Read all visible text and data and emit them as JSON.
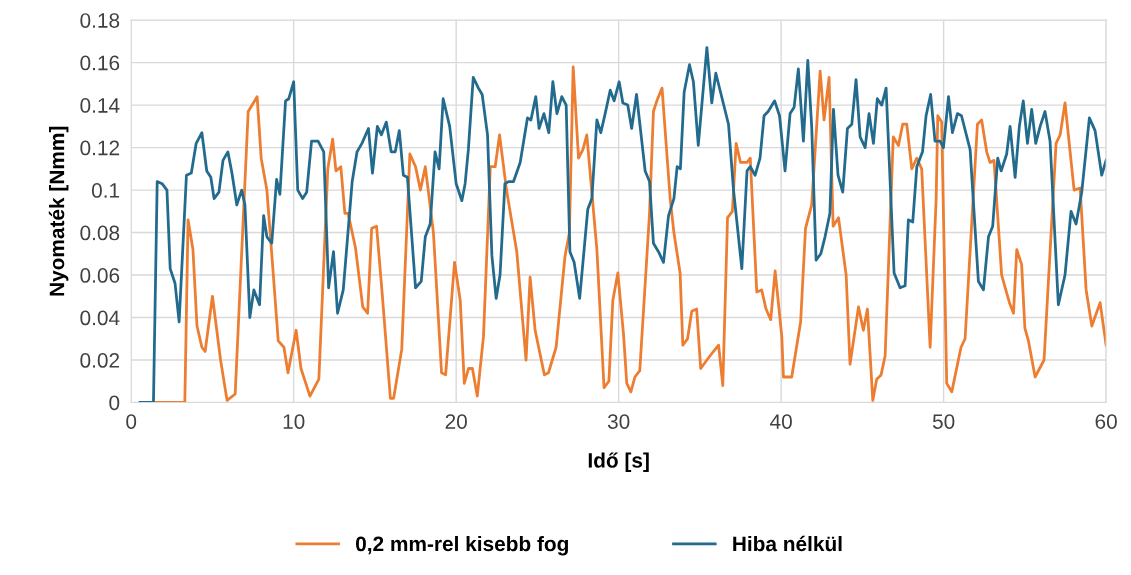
{
  "chart_data": {
    "type": "line",
    "xlabel": "Idő [s]",
    "ylabel": "Nyomaték [Nmm]",
    "xlim": [
      0,
      60
    ],
    "xticks": [
      0,
      10,
      20,
      30,
      40,
      50,
      60
    ],
    "ylim": [
      0,
      0.18
    ],
    "yticks": [
      0,
      0.02,
      0.04,
      0.06,
      0.08,
      0.1,
      0.12,
      0.14,
      0.16,
      0.18
    ],
    "grid": true,
    "legend": "bottom",
    "marker": "none",
    "line_style": "solid",
    "series": [
      {
        "name": "0,2 mm-rel kisebb fog",
        "color": "#ed7d31",
        "x": [
          1.37,
          3.3,
          3.5,
          3.8,
          4.05,
          4.35,
          4.55,
          5.0,
          5.5,
          5.9,
          6.4,
          7.2,
          7.75,
          8.0,
          8.35,
          8.65,
          9.05,
          9.4,
          9.65,
          10.15,
          10.45,
          11.0,
          11.55,
          12.1,
          12.4,
          12.6,
          12.9,
          13.15,
          13.35,
          13.8,
          14.25,
          14.55,
          14.8,
          15.1,
          15.45,
          15.95,
          16.15,
          16.65,
          17.15,
          17.5,
          17.8,
          18.1,
          18.6,
          19.1,
          19.35,
          19.9,
          20.25,
          20.5,
          20.76,
          21.0,
          21.3,
          21.68,
          22.1,
          22.4,
          22.67,
          23.1,
          23.73,
          24.3,
          24.55,
          24.86,
          25.43,
          25.68,
          26.15,
          26.7,
          26.97,
          27.2,
          27.53,
          27.8,
          28.04,
          28.66,
          29.1,
          29.4,
          29.64,
          29.95,
          30.3,
          30.5,
          30.75,
          31.0,
          31.3,
          31.9,
          32.14,
          32.35,
          32.67,
          33.17,
          33.4,
          33.78,
          33.95,
          34.24,
          34.5,
          34.8,
          35.05,
          35.43,
          35.83,
          36.15,
          36.41,
          36.7,
          37.0,
          37.23,
          37.5,
          37.9,
          38.1,
          38.5,
          38.8,
          39.07,
          39.36,
          39.63,
          40.04,
          40.14,
          40.65,
          41.2,
          41.5,
          41.88,
          42.4,
          42.64,
          42.95,
          43.2,
          43.53,
          44.0,
          44.24,
          44.76,
          45.06,
          45.31,
          45.64,
          45.88,
          46.15,
          46.4,
          46.9,
          47.22,
          47.48,
          47.73,
          48.04,
          48.35,
          48.65,
          49.17,
          49.54,
          49.64,
          49.88,
          50.19,
          50.5,
          51.07,
          51.32,
          52.08,
          52.34,
          52.65,
          52.86,
          53.1,
          53.57,
          54.05,
          54.3,
          54.5,
          54.8,
          55.0,
          55.22,
          55.63,
          56.18,
          56.92,
          57.17,
          57.47,
          58.03,
          58.4,
          58.77,
          59.12,
          59.63,
          60
        ],
        "values": [
          0,
          0,
          0.086,
          0.072,
          0.036,
          0.026,
          0.024,
          0.05,
          0.02,
          0.001,
          0.004,
          0.137,
          0.144,
          0.115,
          0.1,
          0.07,
          0.029,
          0.026,
          0.014,
          0.034,
          0.016,
          0.003,
          0.011,
          0.11,
          0.124,
          0.109,
          0.111,
          0.089,
          0.089,
          0.073,
          0.045,
          0.042,
          0.082,
          0.083,
          0.051,
          0.002,
          0.002,
          0.025,
          0.117,
          0.111,
          0.1,
          0.111,
          0.08,
          0.014,
          0.013,
          0.066,
          0.048,
          0.009,
          0.016,
          0.016,
          0.003,
          0.031,
          0.111,
          0.111,
          0.126,
          0.1,
          0.071,
          0.02,
          0.059,
          0.034,
          0.013,
          0.014,
          0.026,
          0.069,
          0.08,
          0.158,
          0.115,
          0.119,
          0.126,
          0.072,
          0.007,
          0.01,
          0.048,
          0.061,
          0.032,
          0.009,
          0.005,
          0.012,
          0.015,
          0.089,
          0.137,
          0.142,
          0.148,
          0.096,
          0.08,
          0.061,
          0.027,
          0.03,
          0.043,
          0.044,
          0.016,
          0.02,
          0.024,
          0.027,
          0.008,
          0.087,
          0.09,
          0.122,
          0.113,
          0.113,
          0.115,
          0.052,
          0.053,
          0.044,
          0.039,
          0.062,
          0.031,
          0.012,
          0.012,
          0.038,
          0.082,
          0.093,
          0.156,
          0.133,
          0.153,
          0.083,
          0.087,
          0.06,
          0.018,
          0.045,
          0.034,
          0.044,
          0.001,
          0.011,
          0.013,
          0.022,
          0.125,
          0.121,
          0.131,
          0.131,
          0.11,
          0.115,
          0.11,
          0.026,
          0.096,
          0.135,
          0.132,
          0.009,
          0.005,
          0.026,
          0.03,
          0.131,
          0.133,
          0.118,
          0.113,
          0.114,
          0.06,
          0.047,
          0.042,
          0.072,
          0.065,
          0.035,
          0.029,
          0.012,
          0.02,
          0.122,
          0.126,
          0.141,
          0.1,
          0.101,
          0.053,
          0.036,
          0.047,
          0.027
        ]
      },
      {
        "name": "Hiba nélkül",
        "color": "#236b8e",
        "x": [
          0.55,
          1.37,
          1.6,
          1.9,
          2.2,
          2.4,
          2.7,
          2.95,
          3.4,
          3.7,
          4.0,
          4.35,
          4.65,
          4.9,
          5.1,
          5.4,
          5.65,
          5.95,
          6.2,
          6.5,
          6.8,
          7.0,
          7.3,
          7.55,
          7.9,
          8.15,
          8.35,
          8.65,
          8.95,
          9.15,
          9.5,
          9.7,
          10.0,
          10.25,
          10.55,
          10.8,
          11.1,
          11.5,
          11.85,
          12.15,
          12.45,
          12.7,
          13.05,
          13.6,
          13.9,
          14.2,
          14.6,
          14.85,
          15.15,
          15.4,
          15.7,
          16.0,
          16.25,
          16.5,
          16.75,
          17.0,
          17.5,
          17.85,
          18.1,
          18.4,
          18.7,
          18.95,
          19.2,
          19.6,
          20.0,
          20.35,
          20.55,
          20.75,
          21.05,
          21.37,
          21.6,
          21.93,
          22.2,
          22.46,
          22.7,
          23.0,
          23.22,
          23.53,
          23.94,
          24.39,
          24.6,
          24.9,
          25.1,
          25.4,
          25.7,
          25.95,
          26.2,
          26.5,
          26.77,
          27.0,
          27.26,
          27.6,
          28.1,
          28.35,
          28.66,
          28.9,
          29.17,
          29.48,
          29.72,
          30.03,
          30.26,
          30.56,
          30.8,
          31.1,
          31.63,
          31.9,
          32.14,
          32.45,
          32.76,
          33.07,
          33.4,
          33.6,
          33.8,
          34.03,
          34.36,
          34.6,
          34.9,
          35.43,
          35.73,
          35.98,
          36.76,
          37.07,
          37.58,
          37.9,
          38.1,
          38.4,
          38.7,
          38.95,
          39.2,
          39.6,
          39.9,
          40.24,
          40.55,
          40.8,
          41.06,
          41.37,
          41.64,
          41.88,
          42.15,
          42.44,
          42.7,
          43.0,
          43.22,
          43.5,
          43.79,
          44.08,
          44.35,
          44.61,
          44.86,
          45.17,
          45.41,
          45.68,
          45.92,
          46.19,
          46.46,
          46.95,
          47.32,
          47.63,
          47.83,
          48.1,
          48.35,
          48.7,
          48.92,
          49.2,
          49.47,
          49.78,
          49.99,
          50.3,
          50.54,
          50.85,
          51.1,
          51.63,
          52.14,
          52.45,
          52.76,
          53.02,
          53.33,
          53.54,
          53.88,
          54.09,
          54.4,
          54.66,
          54.9,
          55.16,
          55.42,
          55.67,
          55.94,
          56.24,
          56.55,
          57.06,
          57.47,
          57.84,
          58.15,
          58.5,
          58.97,
          59.32,
          59.73,
          60
        ],
        "values": [
          0,
          0,
          0.104,
          0.103,
          0.1,
          0.063,
          0.056,
          0.038,
          0.107,
          0.108,
          0.122,
          0.127,
          0.109,
          0.106,
          0.096,
          0.099,
          0.114,
          0.118,
          0.108,
          0.093,
          0.1,
          0.093,
          0.04,
          0.053,
          0.046,
          0.088,
          0.078,
          0.075,
          0.105,
          0.098,
          0.142,
          0.143,
          0.151,
          0.1,
          0.096,
          0.099,
          0.123,
          0.123,
          0.118,
          0.054,
          0.071,
          0.042,
          0.053,
          0.104,
          0.118,
          0.122,
          0.129,
          0.108,
          0.13,
          0.126,
          0.132,
          0.118,
          0.118,
          0.128,
          0.107,
          0.106,
          0.054,
          0.057,
          0.078,
          0.084,
          0.118,
          0.11,
          0.143,
          0.13,
          0.103,
          0.095,
          0.103,
          0.119,
          0.153,
          0.148,
          0.145,
          0.126,
          0.069,
          0.049,
          0.06,
          0.103,
          0.104,
          0.104,
          0.113,
          0.134,
          0.133,
          0.144,
          0.129,
          0.136,
          0.127,
          0.151,
          0.136,
          0.144,
          0.14,
          0.071,
          0.066,
          0.049,
          0.091,
          0.096,
          0.133,
          0.127,
          0.136,
          0.147,
          0.142,
          0.151,
          0.141,
          0.14,
          0.129,
          0.145,
          0.109,
          0.104,
          0.075,
          0.071,
          0.066,
          0.088,
          0.096,
          0.111,
          0.11,
          0.146,
          0.159,
          0.151,
          0.121,
          0.167,
          0.141,
          0.155,
          0.131,
          0.1,
          0.063,
          0.109,
          0.111,
          0.107,
          0.115,
          0.135,
          0.137,
          0.142,
          0.135,
          0.109,
          0.136,
          0.139,
          0.157,
          0.123,
          0.161,
          0.13,
          0.067,
          0.07,
          0.078,
          0.089,
          0.138,
          0.107,
          0.099,
          0.129,
          0.131,
          0.152,
          0.125,
          0.12,
          0.136,
          0.122,
          0.143,
          0.14,
          0.148,
          0.061,
          0.054,
          0.055,
          0.086,
          0.085,
          0.111,
          0.118,
          0.135,
          0.145,
          0.123,
          0.123,
          0.12,
          0.144,
          0.127,
          0.136,
          0.135,
          0.119,
          0.057,
          0.053,
          0.078,
          0.083,
          0.115,
          0.109,
          0.117,
          0.13,
          0.106,
          0.13,
          0.142,
          0.122,
          0.138,
          0.122,
          0.13,
          0.137,
          0.123,
          0.046,
          0.06,
          0.09,
          0.084,
          0.099,
          0.134,
          0.128,
          0.107,
          0.114
        ]
      }
    ]
  }
}
